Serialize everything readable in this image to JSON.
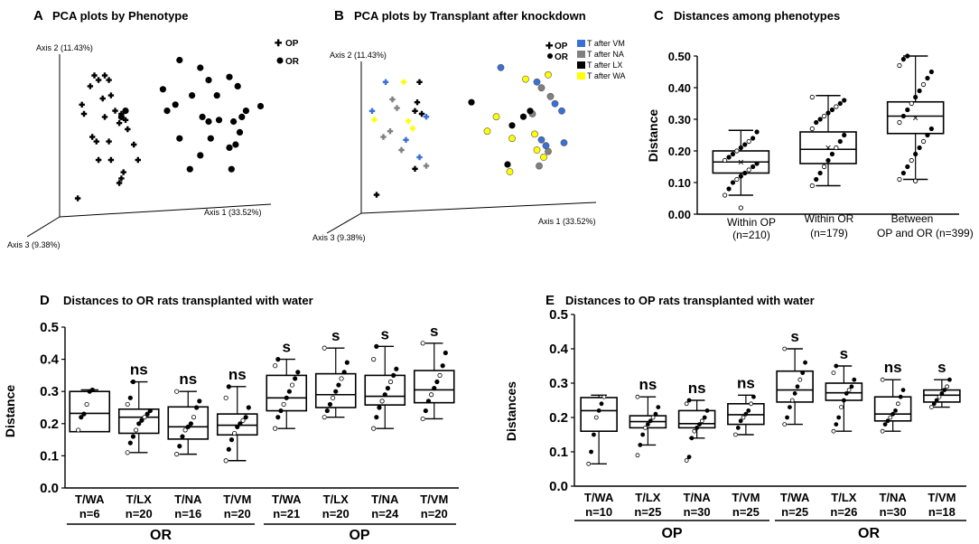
{
  "chart_data": [
    {
      "panel": "A",
      "type": "scatter",
      "title": "PCA plots by Phenotype",
      "axes": {
        "axis1": "Axis 1 (33.52%)",
        "axis2": "Axis 2 (11.43%)",
        "axis3": "Axis 3 (9.38%)"
      },
      "legend": [
        {
          "label": "OP",
          "marker": "cross"
        },
        {
          "label": "OR",
          "marker": "dot"
        }
      ],
      "series": [
        {
          "name": "OP",
          "points": [
            [
              0.15,
              0.85
            ],
            [
              0.17,
              0.82
            ],
            [
              0.2,
              0.85
            ],
            [
              0.22,
              0.82
            ],
            [
              0.13,
              0.78
            ],
            [
              0.19,
              0.7
            ],
            [
              0.23,
              0.72
            ],
            [
              0.09,
              0.66
            ],
            [
              0.1,
              0.6
            ],
            [
              0.2,
              0.58
            ],
            [
              0.25,
              0.62
            ],
            [
              0.28,
              0.6
            ],
            [
              0.3,
              0.56
            ],
            [
              0.31,
              0.5
            ],
            [
              0.27,
              0.54
            ],
            [
              0.14,
              0.45
            ],
            [
              0.16,
              0.42
            ],
            [
              0.22,
              0.42
            ],
            [
              0.34,
              0.4
            ],
            [
              0.17,
              0.3
            ],
            [
              0.23,
              0.3
            ],
            [
              0.29,
              0.22
            ],
            [
              0.28,
              0.18
            ],
            [
              0.27,
              0.15
            ],
            [
              0.36,
              0.3
            ],
            [
              0.07,
              0.05
            ]
          ]
        },
        {
          "name": "OR",
          "points": [
            [
              0.56,
              0.95
            ],
            [
              0.66,
              0.9
            ],
            [
              0.7,
              0.82
            ],
            [
              0.48,
              0.76
            ],
            [
              0.62,
              0.72
            ],
            [
              0.74,
              0.72
            ],
            [
              0.8,
              0.84
            ],
            [
              0.84,
              0.78
            ],
            [
              0.5,
              0.62
            ],
            [
              0.54,
              0.66
            ],
            [
              0.67,
              0.58
            ],
            [
              0.7,
              0.55
            ],
            [
              0.75,
              0.56
            ],
            [
              0.82,
              0.55
            ],
            [
              0.86,
              0.58
            ],
            [
              0.88,
              0.62
            ],
            [
              0.95,
              0.65
            ],
            [
              0.3,
              0.62
            ],
            [
              0.28,
              0.58
            ],
            [
              0.56,
              0.44
            ],
            [
              0.71,
              0.44
            ],
            [
              0.8,
              0.38
            ],
            [
              0.83,
              0.4
            ],
            [
              0.61,
              0.24
            ],
            [
              0.81,
              0.24
            ],
            [
              0.66,
              0.33
            ],
            [
              0.85,
              0.48
            ]
          ]
        }
      ]
    },
    {
      "panel": "B",
      "type": "scatter",
      "title": "PCA plots by Transplant after knockdown",
      "axes": {
        "axis1": "Axis 1 (33.52%)",
        "axis2": "Axis 2 (11.43%)",
        "axis3": "Axis 3 (9.38%)"
      },
      "legend": [
        {
          "label": "OP",
          "marker": "cross"
        },
        {
          "label": "OR",
          "marker": "dot"
        },
        {
          "label": "T after VM",
          "color": "#3a6fd8"
        },
        {
          "label": "T after NA",
          "color": "#808080"
        },
        {
          "label": "T after LX",
          "color": "#000000"
        },
        {
          "label": "T after WA",
          "color": "#ffff00"
        }
      ],
      "series": [
        {
          "name": "OP T after VM",
          "marker": "cross",
          "color": "#3a6fd8",
          "points": [
            [
              0.1,
              0.82
            ],
            [
              0.04,
              0.62
            ],
            [
              0.19,
              0.42
            ],
            [
              0.28,
              0.58
            ],
            [
              0.25,
              0.3
            ]
          ]
        },
        {
          "name": "OP T after NA",
          "marker": "cross",
          "color": "#808080",
          "points": [
            [
              0.13,
              0.7
            ],
            [
              0.15,
              0.64
            ],
            [
              0.12,
              0.48
            ],
            [
              0.09,
              0.44
            ],
            [
              0.17,
              0.35
            ],
            [
              0.28,
              0.24
            ]
          ]
        },
        {
          "name": "OP T after LX",
          "marker": "cross",
          "color": "#000000",
          "points": [
            [
              0.25,
              0.82
            ],
            [
              0.24,
              0.68
            ],
            [
              0.23,
              0.62
            ],
            [
              0.26,
              0.6
            ],
            [
              0.23,
              0.22
            ],
            [
              0.06,
              0.04
            ]
          ]
        },
        {
          "name": "OP T after WA",
          "marker": "cross",
          "color": "#ffff00",
          "points": [
            [
              0.18,
              0.82
            ],
            [
              0.05,
              0.56
            ],
            [
              0.2,
              0.55
            ],
            [
              0.22,
              0.5
            ]
          ]
        },
        {
          "name": "OR T after VM",
          "marker": "dot",
          "color": "#3a6fd8",
          "points": [
            [
              0.61,
              0.92
            ],
            [
              0.77,
              0.82
            ],
            [
              0.85,
              0.67
            ],
            [
              0.88,
              0.62
            ],
            [
              0.79,
              0.42
            ],
            [
              0.81,
              0.38
            ],
            [
              0.89,
              0.4
            ]
          ]
        },
        {
          "name": "OR T after NA",
          "marker": "dot",
          "color": "#808080",
          "points": [
            [
              0.79,
              0.78
            ],
            [
              0.83,
              0.72
            ],
            [
              0.75,
              0.6
            ],
            [
              0.82,
              0.34
            ],
            [
              0.78,
              0.24
            ]
          ]
        },
        {
          "name": "OR T after LX",
          "marker": "dot",
          "color": "#000000",
          "points": [
            [
              0.48,
              0.68
            ],
            [
              0.66,
              0.52
            ],
            [
              0.71,
              0.58
            ],
            [
              0.74,
              0.62
            ],
            [
              0.64,
              0.25
            ]
          ]
        },
        {
          "name": "OR T after WA",
          "marker": "dot",
          "color": "#ffff00",
          "points": [
            [
              0.59,
              0.58
            ],
            [
              0.55,
              0.48
            ],
            [
              0.66,
              0.43
            ],
            [
              0.72,
              0.84
            ],
            [
              0.76,
              0.46
            ],
            [
              0.77,
              0.35
            ],
            [
              0.65,
              0.2
            ],
            [
              0.8,
              0.3
            ],
            [
              0.82,
              0.87
            ]
          ]
        }
      ]
    },
    {
      "panel": "C",
      "type": "boxplot",
      "title": "Distances among phenotypes",
      "ylabel": "Distance",
      "ylim": [
        0,
        0.5
      ],
      "yticks": [
        "0.00",
        "0.10",
        "0.20",
        "0.30",
        "0.40",
        "0.50"
      ],
      "groups": [
        {
          "label": "Within OP",
          "n": "(n=210)",
          "min": 0.06,
          "q1": 0.13,
          "median": 0.165,
          "q3": 0.2,
          "max": 0.265,
          "mean": 0.165,
          "outliers": [
            0.02
          ],
          "points": [
            0.06,
            0.08,
            0.1,
            0.11,
            0.12,
            0.13,
            0.14,
            0.15,
            0.16,
            0.17,
            0.18,
            0.19,
            0.2,
            0.21,
            0.22,
            0.23,
            0.24,
            0.26
          ]
        },
        {
          "label": "Within  OR",
          "n": "(n=179)",
          "min": 0.09,
          "q1": 0.16,
          "median": 0.205,
          "q3": 0.26,
          "max": 0.375,
          "mean": 0.21,
          "outliers": [],
          "points": [
            0.09,
            0.11,
            0.13,
            0.15,
            0.17,
            0.19,
            0.21,
            0.23,
            0.25,
            0.27,
            0.29,
            0.3,
            0.31,
            0.32,
            0.33,
            0.34,
            0.35,
            0.36,
            0.37
          ]
        },
        {
          "label": "Between",
          "label2": "OP and OR",
          "n": "(n=399)",
          "min": 0.11,
          "q1": 0.255,
          "median": 0.31,
          "q3": 0.355,
          "max": 0.5,
          "mean": 0.305,
          "outliers": [
            0.105
          ],
          "points": [
            0.11,
            0.13,
            0.15,
            0.17,
            0.19,
            0.21,
            0.23,
            0.25,
            0.27,
            0.29,
            0.31,
            0.33,
            0.35,
            0.37,
            0.39,
            0.41,
            0.43,
            0.45,
            0.47,
            0.49,
            0.5
          ]
        }
      ]
    },
    {
      "panel": "D",
      "type": "boxplot",
      "title": "Distances to OR rats transplanted with water",
      "ylabel": "Distance",
      "ylim": [
        0,
        0.5
      ],
      "yticks": [
        "0.0",
        "0.1",
        "0.2",
        "0.3",
        "0.4",
        "0.5"
      ],
      "group_labels": [
        "OR",
        "OP"
      ],
      "groups": [
        {
          "label": "T/WA",
          "n": "n=6",
          "sig": "",
          "min": 0.175,
          "q1": 0.175,
          "median": 0.232,
          "q3": 0.3,
          "max": 0.305,
          "points": [
            0.18,
            0.22,
            0.23,
            0.26,
            0.3,
            0.305
          ]
        },
        {
          "label": "T/LX",
          "n": "n=20",
          "sig": "ns",
          "min": 0.11,
          "q1": 0.17,
          "median": 0.22,
          "q3": 0.245,
          "max": 0.33,
          "points": [
            0.11,
            0.14,
            0.16,
            0.18,
            0.2,
            0.21,
            0.22,
            0.23,
            0.24,
            0.26,
            0.28,
            0.33
          ]
        },
        {
          "label": "T/NA",
          "n": "n=16",
          "sig": "ns",
          "min": 0.105,
          "q1": 0.152,
          "median": 0.19,
          "q3": 0.252,
          "max": 0.3,
          "points": [
            0.105,
            0.13,
            0.16,
            0.18,
            0.19,
            0.2,
            0.22,
            0.25,
            0.27,
            0.3
          ]
        },
        {
          "label": "T/VM",
          "n": "n=20",
          "sig": "ns",
          "min": 0.085,
          "q1": 0.165,
          "median": 0.195,
          "q3": 0.23,
          "max": 0.315,
          "points": [
            0.085,
            0.12,
            0.15,
            0.17,
            0.19,
            0.2,
            0.21,
            0.22,
            0.25,
            0.28,
            0.315
          ]
        },
        {
          "label": "T/WA",
          "n": "n=21",
          "sig": "s",
          "min": 0.185,
          "q1": 0.24,
          "median": 0.28,
          "q3": 0.35,
          "max": 0.4,
          "points": [
            0.185,
            0.22,
            0.24,
            0.26,
            0.28,
            0.3,
            0.32,
            0.34,
            0.36,
            0.38,
            0.4
          ]
        },
        {
          "label": "T/LX",
          "n": "n=20",
          "sig": "s",
          "min": 0.22,
          "q1": 0.25,
          "median": 0.29,
          "q3": 0.355,
          "max": 0.435,
          "points": [
            0.22,
            0.24,
            0.26,
            0.28,
            0.3,
            0.32,
            0.34,
            0.36,
            0.39,
            0.435
          ]
        },
        {
          "label": "T/NA",
          "n": "n=24",
          "sig": "s",
          "min": 0.185,
          "q1": 0.258,
          "median": 0.285,
          "q3": 0.35,
          "max": 0.44,
          "points": [
            0.185,
            0.22,
            0.25,
            0.27,
            0.29,
            0.31,
            0.33,
            0.35,
            0.37,
            0.4,
            0.44
          ]
        },
        {
          "label": "T/VM",
          "n": "n=20",
          "sig": "s",
          "min": 0.215,
          "q1": 0.265,
          "median": 0.305,
          "q3": 0.365,
          "max": 0.45,
          "points": [
            0.215,
            0.24,
            0.27,
            0.29,
            0.31,
            0.33,
            0.35,
            0.38,
            0.42,
            0.45
          ]
        }
      ]
    },
    {
      "panel": "E",
      "type": "boxplot",
      "title": "Distances to OP rats transplanted with water",
      "ylabel": "Distances",
      "ylim": [
        0,
        0.5
      ],
      "yticks": [
        "0.0",
        "0.1",
        "0.2",
        "0.3",
        "0.4",
        "0.5"
      ],
      "group_labels": [
        "OP",
        "OR"
      ],
      "groups": [
        {
          "label": "T/WA",
          "n": "n=10",
          "sig": "",
          "min": 0.065,
          "q1": 0.16,
          "median": 0.22,
          "q3": 0.258,
          "max": 0.265,
          "points": [
            0.065,
            0.1,
            0.15,
            0.2,
            0.22,
            0.24,
            0.26
          ]
        },
        {
          "label": "T/LX",
          "n": "n=25",
          "sig": "ns",
          "min": 0.12,
          "q1": 0.17,
          "median": 0.188,
          "q3": 0.205,
          "max": 0.26,
          "points": [
            0.09,
            0.12,
            0.15,
            0.17,
            0.18,
            0.19,
            0.2,
            0.21,
            0.23,
            0.26
          ]
        },
        {
          "label": "T/NA",
          "n": "n=30",
          "sig": "ns",
          "min": 0.14,
          "q1": 0.17,
          "median": 0.182,
          "q3": 0.22,
          "max": 0.25,
          "points": [
            0.075,
            0.085,
            0.14,
            0.16,
            0.17,
            0.18,
            0.19,
            0.2,
            0.22,
            0.24,
            0.25
          ]
        },
        {
          "label": "T/VM",
          "n": "n=25",
          "sig": "ns",
          "min": 0.15,
          "q1": 0.18,
          "median": 0.208,
          "q3": 0.24,
          "max": 0.265,
          "points": [
            0.15,
            0.17,
            0.19,
            0.2,
            0.21,
            0.22,
            0.24,
            0.26
          ]
        },
        {
          "label": "T/WA",
          "n": "n=25",
          "sig": "s",
          "min": 0.18,
          "q1": 0.245,
          "median": 0.28,
          "q3": 0.335,
          "max": 0.4,
          "points": [
            0.18,
            0.2,
            0.23,
            0.25,
            0.27,
            0.29,
            0.31,
            0.33,
            0.36,
            0.4
          ]
        },
        {
          "label": "T/LX",
          "n": "n=26",
          "sig": "s",
          "min": 0.16,
          "q1": 0.25,
          "median": 0.272,
          "q3": 0.3,
          "max": 0.35,
          "points": [
            0.16,
            0.18,
            0.2,
            0.23,
            0.25,
            0.27,
            0.28,
            0.29,
            0.31,
            0.33,
            0.35
          ]
        },
        {
          "label": "T/NA",
          "n": "n=30",
          "sig": "ns",
          "min": 0.16,
          "q1": 0.19,
          "median": 0.21,
          "q3": 0.26,
          "max": 0.31,
          "points": [
            0.16,
            0.18,
            0.19,
            0.2,
            0.21,
            0.22,
            0.24,
            0.26,
            0.28,
            0.31
          ]
        },
        {
          "label": "T/VM",
          "n": "n=18",
          "sig": "s",
          "min": 0.23,
          "q1": 0.245,
          "median": 0.265,
          "q3": 0.28,
          "max": 0.31,
          "points": [
            0.23,
            0.24,
            0.25,
            0.26,
            0.27,
            0.28,
            0.29,
            0.31
          ]
        }
      ]
    }
  ]
}
